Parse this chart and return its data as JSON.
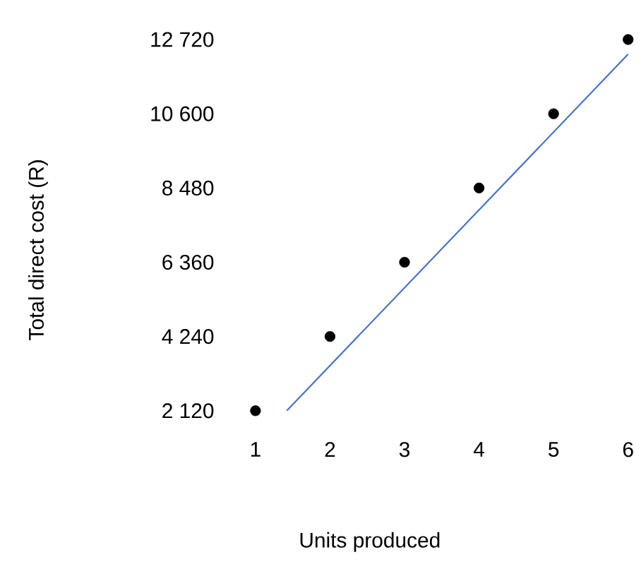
{
  "chart_data": {
    "type": "scatter",
    "xlabel": "Units produced",
    "ylabel": "Total direct cost (R)",
    "xlim": [
      1,
      6
    ],
    "ylim": [
      2120,
      12720
    ],
    "xticks": [
      1,
      2,
      3,
      4,
      5,
      6
    ],
    "yticks": [
      {
        "value": 2120,
        "label": "2 120"
      },
      {
        "value": 4240,
        "label": "4 240"
      },
      {
        "value": 6360,
        "label": "6 360"
      },
      {
        "value": 8480,
        "label": "8 480"
      },
      {
        "value": 10600,
        "label": "10 600"
      },
      {
        "value": 12720,
        "label": "12 720"
      }
    ],
    "series": [
      {
        "color": "#000000",
        "marker": "circle",
        "x": [
          1,
          2,
          3,
          4,
          5,
          6
        ],
        "values": [
          2120,
          4240,
          6360,
          8480,
          10600,
          12720
        ]
      },
      {
        "type": "line",
        "color": "#4472c4",
        "marker": "none",
        "x": [
          1.42,
          6
        ],
        "values": [
          2120,
          12300
        ]
      }
    ]
  }
}
